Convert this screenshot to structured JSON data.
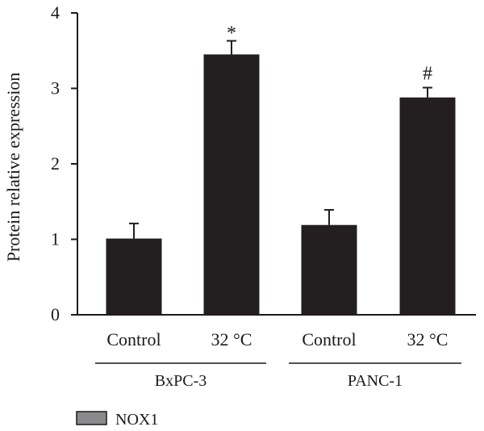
{
  "chart_data": {
    "type": "bar",
    "title": "",
    "xlabel": "",
    "ylabel": "Protein relative expression",
    "ylim": [
      0,
      4
    ],
    "yticks": [
      0,
      1,
      2,
      3,
      4
    ],
    "categories": [
      "Control",
      "32 °C",
      "Control",
      "32 °C"
    ],
    "groups": [
      {
        "label": "BxPC-3",
        "categories": [
          "Control",
          "32 °C"
        ]
      },
      {
        "label": "PANC-1",
        "categories": [
          "Control",
          "32 °C"
        ]
      }
    ],
    "series": [
      {
        "name": "NOX1",
        "values": [
          1.01,
          3.45,
          1.19,
          2.88
        ],
        "errors": [
          0.2,
          0.18,
          0.2,
          0.13
        ],
        "annotations": [
          "",
          "*",
          "",
          "#"
        ]
      }
    ],
    "legend": {
      "position": "bottom-left"
    },
    "grid": false
  },
  "colors": {
    "bar": "#231f20",
    "legend_swatch": "#8a8a8c",
    "axis": "#1a1a1a"
  }
}
